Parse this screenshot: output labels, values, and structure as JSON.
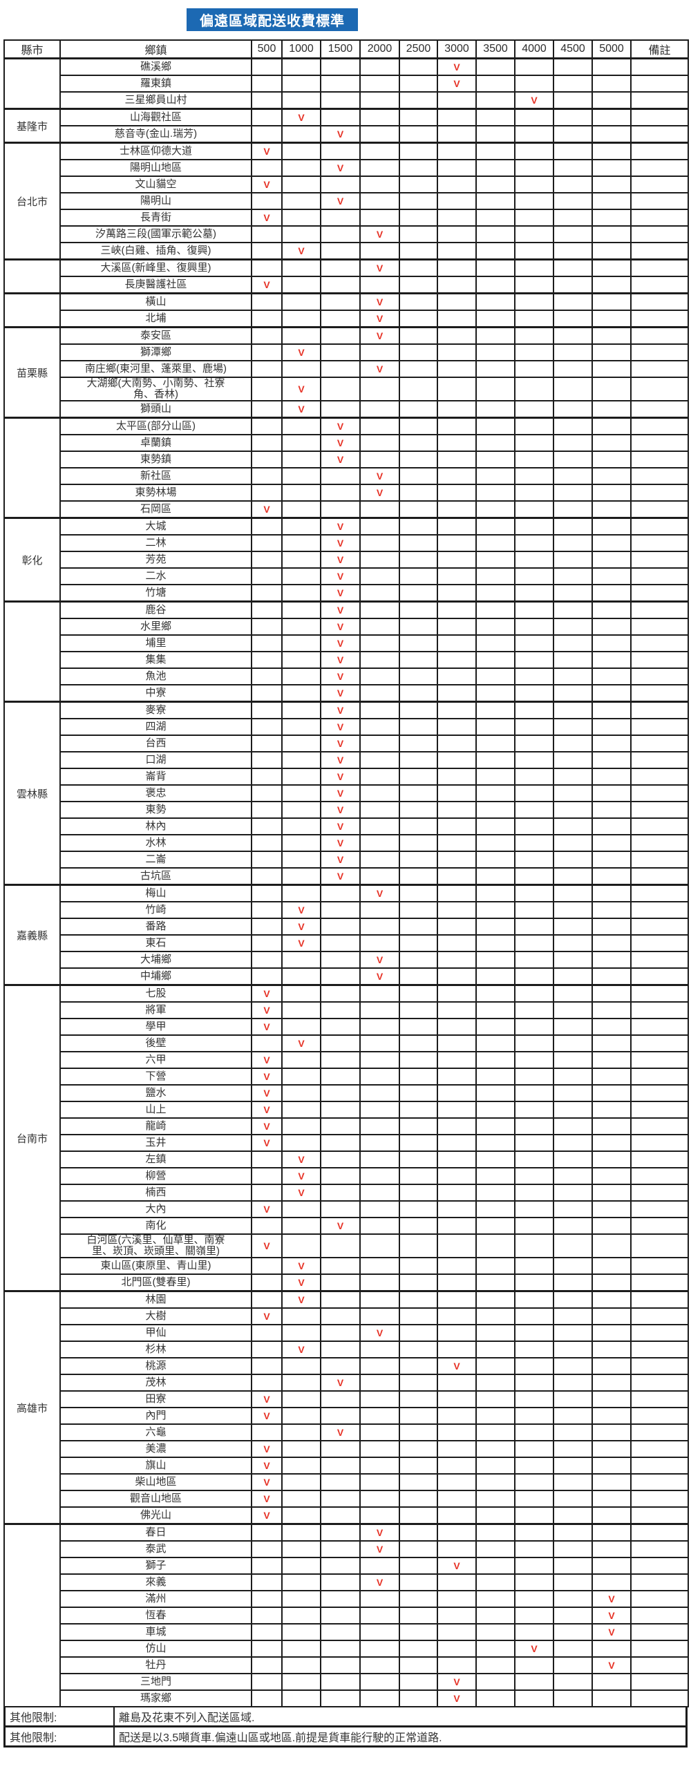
{
  "title": "偏遠區域配送收費標準",
  "colors": {
    "banner_bg": "#1c69b3",
    "banner_text": "#ffffff",
    "check_red": "#e63327",
    "border": "#1c1c1c",
    "text": "#343434"
  },
  "table": {
    "headers": [
      "縣市",
      "鄉鎮",
      "500",
      "1000",
      "1500",
      "2000",
      "2500",
      "3000",
      "3500",
      "4000",
      "4500",
      "5000",
      "備註"
    ],
    "fee_columns": [
      "500",
      "1000",
      "1500",
      "2000",
      "2500",
      "3000",
      "3500",
      "4000",
      "4500",
      "5000"
    ],
    "check_mark": "V",
    "groups": [
      {
        "county": "",
        "rows": [
          {
            "town": "礁溪鄉",
            "check": "3000"
          },
          {
            "town": "羅東鎮",
            "check": "3000"
          },
          {
            "town": "三星鄉員山村",
            "check": "4000"
          }
        ]
      },
      {
        "county": "基隆市",
        "rows": [
          {
            "town": "山海觀社區",
            "check": "1000"
          },
          {
            "town": "慈音寺(金山.瑞芳)",
            "check": "1500"
          }
        ]
      },
      {
        "county": "台北市",
        "rows": [
          {
            "town": "士林區仰德大道",
            "check": "500"
          },
          {
            "town": "陽明山地區",
            "check": "1500"
          },
          {
            "town": "文山貓空",
            "check": "500"
          },
          {
            "town": "陽明山",
            "check": "1500"
          },
          {
            "town": "長青街",
            "check": "500"
          },
          {
            "town": "汐萬路三段(國軍示範公墓)",
            "check": "2000"
          },
          {
            "town": "三峽(白雞、插角、復興)",
            "check": "1000"
          }
        ]
      },
      {
        "county": "",
        "rows": [
          {
            "town": "大溪區(新峰里、復興里)",
            "check": "2000"
          },
          {
            "town": "長庚醫護社區",
            "check": "500"
          }
        ]
      },
      {
        "county": "",
        "rows": [
          {
            "town": "橫山",
            "check": "2000"
          },
          {
            "town": "北埔",
            "check": "2000"
          }
        ]
      },
      {
        "county": "苗栗縣",
        "rows": [
          {
            "town": "泰安區",
            "check": "2000"
          },
          {
            "town": "獅潭鄉",
            "check": "1000"
          },
          {
            "town": "南庄鄉(東河里、蓬萊里、鹿場)",
            "check": "2000"
          },
          {
            "town": "大湖鄉(大南勢、小南勢、社寮\n角、香林)",
            "check": "1000"
          },
          {
            "town": "獅頭山",
            "check": "1000"
          }
        ]
      },
      {
        "county": "",
        "rows": [
          {
            "town": "太平區(部分山區)",
            "check": "1500"
          },
          {
            "town": "卓蘭鎮",
            "check": "1500"
          },
          {
            "town": "東勢鎮",
            "check": "1500"
          },
          {
            "town": "新社區",
            "check": "2000"
          },
          {
            "town": "東勢林場",
            "check": "2000"
          },
          {
            "town": "石岡區",
            "check": "500"
          }
        ]
      },
      {
        "county": "彰化",
        "rows": [
          {
            "town": "大城",
            "check": "1500"
          },
          {
            "town": "二林",
            "check": "1500"
          },
          {
            "town": "芳苑",
            "check": "1500"
          },
          {
            "town": "二水",
            "check": "1500"
          },
          {
            "town": "竹塘",
            "check": "1500"
          }
        ]
      },
      {
        "county": "",
        "rows": [
          {
            "town": "鹿谷",
            "check": "1500"
          },
          {
            "town": "水里鄉",
            "check": "1500"
          },
          {
            "town": "埔里",
            "check": "1500"
          },
          {
            "town": "集集",
            "check": "1500"
          },
          {
            "town": "魚池",
            "check": "1500"
          },
          {
            "town": "中寮",
            "check": "1500"
          }
        ]
      },
      {
        "county": "雲林縣",
        "rows": [
          {
            "town": "麥寮",
            "check": "1500"
          },
          {
            "town": "四湖",
            "check": "1500"
          },
          {
            "town": "台西",
            "check": "1500"
          },
          {
            "town": "口湖",
            "check": "1500"
          },
          {
            "town": "崙背",
            "check": "1500"
          },
          {
            "town": "褒忠",
            "check": "1500"
          },
          {
            "town": "東勢",
            "check": "1500"
          },
          {
            "town": "林內",
            "check": "1500"
          },
          {
            "town": "水林",
            "check": "1500"
          },
          {
            "town": "二崙",
            "check": "1500"
          },
          {
            "town": "古坑區",
            "check": "1500"
          }
        ]
      },
      {
        "county": "嘉義縣",
        "rows": [
          {
            "town": "梅山",
            "check": "2000"
          },
          {
            "town": "竹崎",
            "check": "1000"
          },
          {
            "town": "番路",
            "check": "1000"
          },
          {
            "town": "東石",
            "check": "1000"
          },
          {
            "town": "大埔鄉",
            "check": "2000"
          },
          {
            "town": "中埔鄉",
            "check": "2000"
          }
        ]
      },
      {
        "county": "台南市",
        "rows": [
          {
            "town": "七股",
            "check": "500"
          },
          {
            "town": "將軍",
            "check": "500"
          },
          {
            "town": "學甲",
            "check": "500"
          },
          {
            "town": "後壁",
            "check": "1000"
          },
          {
            "town": "六甲",
            "check": "500"
          },
          {
            "town": "下營",
            "check": "500"
          },
          {
            "town": "鹽水",
            "check": "500"
          },
          {
            "town": "山上",
            "check": "500"
          },
          {
            "town": "龍崎",
            "check": "500"
          },
          {
            "town": "玉井",
            "check": "500"
          },
          {
            "town": "左鎮",
            "check": "1000"
          },
          {
            "town": "柳營",
            "check": "1000"
          },
          {
            "town": "楠西",
            "check": "1000"
          },
          {
            "town": "大內",
            "check": "500"
          },
          {
            "town": "南化",
            "check": "1500"
          },
          {
            "town": "白河區(六溪里、仙草里、南寮\n里、崁頂、崁頭里、關嶺里)",
            "check": "500"
          },
          {
            "town": "東山區(東原里、青山里)",
            "check": "1000"
          },
          {
            "town": "北門區(雙春里)",
            "check": "1000"
          }
        ]
      },
      {
        "county": "高雄市",
        "rows": [
          {
            "town": "林園",
            "check": "1000"
          },
          {
            "town": "大樹",
            "check": "500"
          },
          {
            "town": "甲仙",
            "check": "2000"
          },
          {
            "town": "杉林",
            "check": "1000"
          },
          {
            "town": "桃源",
            "check": "3000"
          },
          {
            "town": "茂林",
            "check": "1500"
          },
          {
            "town": "田寮",
            "check": "500"
          },
          {
            "town": "內門",
            "check": "500"
          },
          {
            "town": "六龜",
            "check": "1500"
          },
          {
            "town": "美濃",
            "check": "500"
          },
          {
            "town": "旗山",
            "check": "500"
          },
          {
            "town": "柴山地區",
            "check": "500"
          },
          {
            "town": "觀音山地區",
            "check": "500"
          },
          {
            "town": "佛光山",
            "check": "500"
          }
        ]
      },
      {
        "county": "",
        "rows": [
          {
            "town": "春日",
            "check": "2000"
          },
          {
            "town": "泰武",
            "check": "2000"
          },
          {
            "town": "獅子",
            "check": "3000"
          },
          {
            "town": "來義",
            "check": "2000"
          },
          {
            "town": "滿州",
            "check": "5000"
          },
          {
            "town": "恆春",
            "check": "5000"
          },
          {
            "town": "車城",
            "check": "5000"
          },
          {
            "town": "仿山",
            "check": "4000"
          },
          {
            "town": "牡丹",
            "check": "5000"
          },
          {
            "town": "三地門",
            "check": "3000"
          },
          {
            "town": "瑪家鄉",
            "check": "3000"
          }
        ]
      }
    ],
    "footnotes": [
      {
        "label": "其他限制:",
        "text": "離島及花東不列入配送區域."
      },
      {
        "label": "其他限制:",
        "text": "配送是以3.5噸貨車.偏遠山區或地區.前提是貨車能行駛的正常道路."
      }
    ]
  }
}
